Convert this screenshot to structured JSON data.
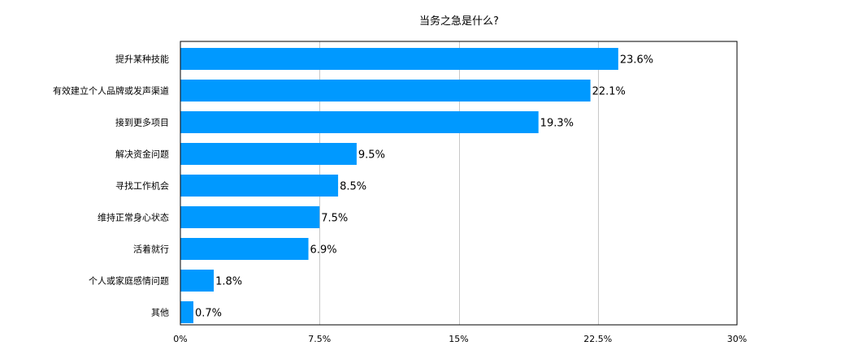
{
  "chart_data": {
    "type": "bar",
    "orientation": "horizontal",
    "title": "当务之急是什么?",
    "categories": [
      "提升某种技能",
      "有效建立个人品牌或发声渠道",
      "接到更多项目",
      "解决资金问题",
      "寻找工作机会",
      "维持正常身心状态",
      "活着就行",
      "个人或家庭感情问题",
      "其他"
    ],
    "values": [
      23.6,
      22.1,
      19.3,
      9.5,
      8.5,
      7.5,
      6.9,
      1.8,
      0.7
    ],
    "value_labels": [
      "23.6%",
      "22.1%",
      "19.3%",
      "9.5%",
      "8.5%",
      "7.5%",
      "6.9%",
      "1.8%",
      "0.7%"
    ],
    "xlim": [
      0,
      30
    ],
    "xticks": [
      0,
      7.5,
      15,
      22.5,
      30
    ],
    "xtick_labels": [
      "0%",
      "7.5%",
      "15%",
      "22.5%",
      "30%"
    ],
    "xlabel": "",
    "ylabel": "",
    "grid": true,
    "bar_color": "#0099ff",
    "grid_color": "#c8c8c8",
    "frame_color": "#000000"
  }
}
